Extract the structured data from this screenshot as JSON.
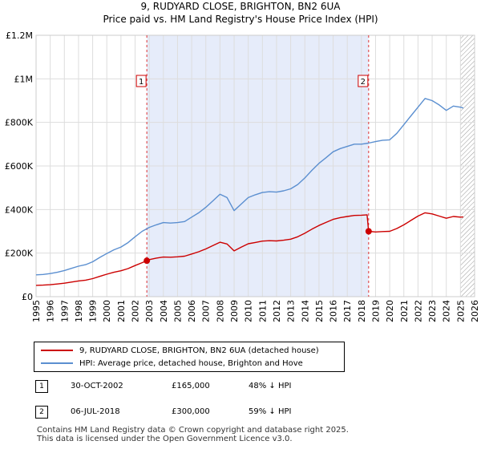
{
  "title_line1": "9, RUDYARD CLOSE, BRIGHTON, BN2 6UA",
  "title_line2": "Price paid vs. HM Land Registry's House Price Index (HPI)",
  "legend": {
    "property_label": "9, RUDYARD CLOSE, BRIGHTON, BN2 6UA (detached house)",
    "hpi_label": "HPI: Average price, detached house, Brighton and Hove"
  },
  "colors": {
    "property": "#cc0000",
    "hpi": "#5b8fd0",
    "shade": "#e6ecfa",
    "grid": "#dddddd"
  },
  "transactions": [
    {
      "marker": "1",
      "date": "30-OCT-2002",
      "price": "£165,000",
      "diff": "48% ↓ HPI"
    },
    {
      "marker": "2",
      "date": "06-JUL-2018",
      "price": "£300,000",
      "diff": "59% ↓ HPI"
    }
  ],
  "footer_line1": "Contains HM Land Registry data © Crown copyright and database right 2025.",
  "footer_line2": "This data is licensed under the Open Government Licence v3.0.",
  "chart_data": {
    "type": "line",
    "title": "9, RUDYARD CLOSE, BRIGHTON, BN2 6UA — Price paid vs. HM Land Registry's House Price Index (HPI)",
    "xlabel": "",
    "ylabel": "",
    "xlim": [
      1995,
      2026
    ],
    "ylim": [
      0,
      1200000
    ],
    "x_ticks": [
      1995,
      1996,
      1997,
      1998,
      1999,
      2000,
      2001,
      2002,
      2003,
      2004,
      2005,
      2006,
      2007,
      2008,
      2009,
      2010,
      2011,
      2012,
      2013,
      2014,
      2015,
      2016,
      2017,
      2018,
      2019,
      2020,
      2021,
      2022,
      2023,
      2024,
      2025,
      2026
    ],
    "y_ticks": [
      {
        "value": 0,
        "label": "£0"
      },
      {
        "value": 200000,
        "label": "£200K"
      },
      {
        "value": 400000,
        "label": "£400K"
      },
      {
        "value": 600000,
        "label": "£600K"
      },
      {
        "value": 800000,
        "label": "£800K"
      },
      {
        "value": 1000000,
        "label": "£1M"
      },
      {
        "value": 1200000,
        "label": "£1.2M"
      }
    ],
    "grid": true,
    "shaded_period": [
      2002.83,
      2018.51
    ],
    "hatched_from": 2025.0,
    "series": [
      {
        "name": "HPI: Average price, detached house, Brighton and Hove",
        "x": [
          1995,
          1995.5,
          1996,
          1996.5,
          1997,
          1997.5,
          1998,
          1998.5,
          1999,
          1999.5,
          2000,
          2000.5,
          2001,
          2001.5,
          2002,
          2002.5,
          2003,
          2003.5,
          2004,
          2004.5,
          2005,
          2005.5,
          2006,
          2006.5,
          2007,
          2007.5,
          2008,
          2008.5,
          2009,
          2009.5,
          2010,
          2010.5,
          2011,
          2011.5,
          2012,
          2012.5,
          2013,
          2013.5,
          2014,
          2014.5,
          2015,
          2015.5,
          2016,
          2016.5,
          2017,
          2017.5,
          2018,
          2018.5,
          2019,
          2019.5,
          2020,
          2020.5,
          2021,
          2021.5,
          2022,
          2022.5,
          2023,
          2023.5,
          2024,
          2024.5,
          2025,
          2025.2
        ],
        "values": [
          100000,
          102000,
          106000,
          112000,
          120000,
          130000,
          140000,
          147000,
          160000,
          180000,
          198000,
          215000,
          228000,
          248000,
          275000,
          300000,
          318000,
          330000,
          340000,
          338000,
          340000,
          345000,
          365000,
          385000,
          410000,
          440000,
          470000,
          455000,
          395000,
          425000,
          455000,
          468000,
          478000,
          482000,
          480000,
          486000,
          495000,
          515000,
          545000,
          580000,
          612000,
          638000,
          665000,
          680000,
          690000,
          700000,
          700000,
          705000,
          712000,
          718000,
          720000,
          750000,
          790000,
          830000,
          870000,
          910000,
          900000,
          880000,
          855000,
          875000,
          870000,
          866000
        ]
      },
      {
        "name": "9, RUDYARD CLOSE, BRIGHTON, BN2 6UA (detached house)",
        "x": [
          1995,
          1995.5,
          1996,
          1996.5,
          1997,
          1997.5,
          1998,
          1998.5,
          1999,
          1999.5,
          2000,
          2000.5,
          2001,
          2001.5,
          2002,
          2002.5,
          2002.83,
          2003,
          2003.5,
          2004,
          2004.5,
          2005,
          2005.5,
          2006,
          2006.5,
          2007,
          2007.5,
          2008,
          2008.5,
          2009,
          2009.5,
          2010,
          2010.5,
          2011,
          2011.5,
          2012,
          2012.5,
          2013,
          2013.5,
          2014,
          2014.5,
          2015,
          2015.5,
          2016,
          2016.5,
          2017,
          2017.5,
          2018,
          2018.4,
          2018.51,
          2019,
          2019.5,
          2020,
          2020.5,
          2021,
          2021.5,
          2022,
          2022.5,
          2023,
          2023.5,
          2024,
          2024.5,
          2025,
          2025.2
        ],
        "values": [
          52000,
          53000,
          55000,
          58000,
          62000,
          67000,
          72000,
          76000,
          83000,
          93000,
          103000,
          112000,
          119000,
          129000,
          143000,
          156000,
          165000,
          170000,
          177000,
          182000,
          181000,
          183000,
          186000,
          196000,
          206000,
          219000,
          235000,
          250000,
          242000,
          210000,
          227000,
          243000,
          249000,
          255000,
          257000,
          256000,
          259000,
          264000,
          275000,
          291000,
          310000,
          327000,
          341000,
          355000,
          363000,
          368000,
          373000,
          374000,
          376000,
          300000,
          297000,
          299000,
          300000,
          313000,
          330000,
          350000,
          370000,
          385000,
          380000,
          370000,
          360000,
          368000,
          365000,
          366000
        ]
      }
    ],
    "annotations": [
      {
        "label": "1",
        "x": 2002.83,
        "y": 165000
      },
      {
        "label": "2",
        "x": 2018.51,
        "y": 300000
      }
    ]
  }
}
